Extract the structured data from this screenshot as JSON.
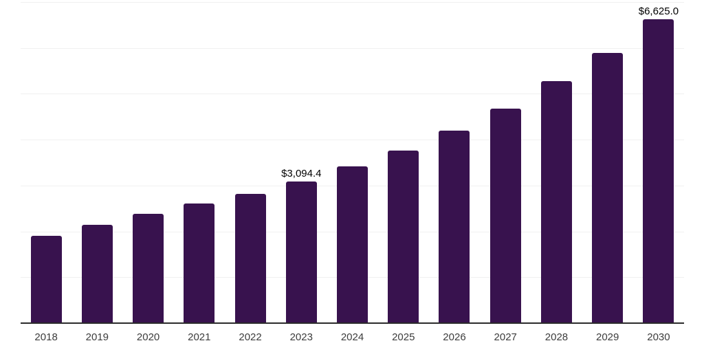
{
  "chart_data": {
    "type": "bar",
    "title": "",
    "xlabel": "",
    "ylabel": "",
    "categories": [
      "2018",
      "2019",
      "2020",
      "2021",
      "2022",
      "2023",
      "2024",
      "2025",
      "2026",
      "2027",
      "2028",
      "2029",
      "2030"
    ],
    "values": [
      1910,
      2140,
      2380,
      2615,
      2815,
      3094.4,
      3415,
      3770,
      4195,
      4680,
      5280,
      5890,
      6625
    ],
    "data_labels": [
      "",
      "",
      "",
      "",
      "",
      "$3,094.4",
      "",
      "",
      "",
      "",
      "",
      "",
      "$6,625.0"
    ],
    "ylim": [
      0,
      7000
    ],
    "gridline_step": 1000,
    "grid": "horizontal",
    "legend": "none",
    "colors": {
      "bar": "#38124E",
      "gridline": "#f0f0f0",
      "axis_line": "#2b2b2b",
      "tick_label": "#3c3c3c",
      "data_label": "#000000",
      "background": "#ffffff"
    }
  }
}
